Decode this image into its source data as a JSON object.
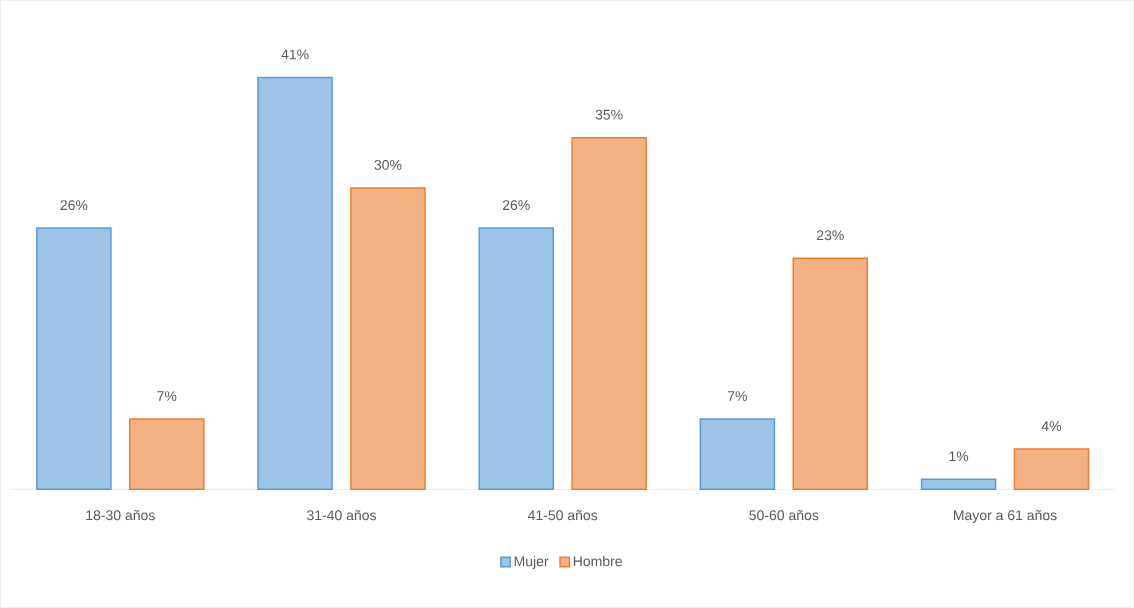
{
  "chart_data": {
    "type": "bar",
    "categories": [
      "18-30 años",
      "31-40 años",
      "41-50 años",
      "50-60 años",
      "Mayor a 61 años"
    ],
    "series": [
      {
        "name": "Mujer",
        "color": "#9dc3e6",
        "values": [
          26,
          41,
          26,
          7,
          1
        ],
        "value_labels": [
          "26%",
          "41%",
          "26%",
          "7%",
          "1%"
        ]
      },
      {
        "name": "Hombre",
        "color": "#f4b183",
        "values": [
          7,
          30,
          35,
          23,
          4
        ],
        "value_labels": [
          "7%",
          "30%",
          "35%",
          "23%",
          "4%"
        ]
      }
    ],
    "legend": "bottom"
  }
}
